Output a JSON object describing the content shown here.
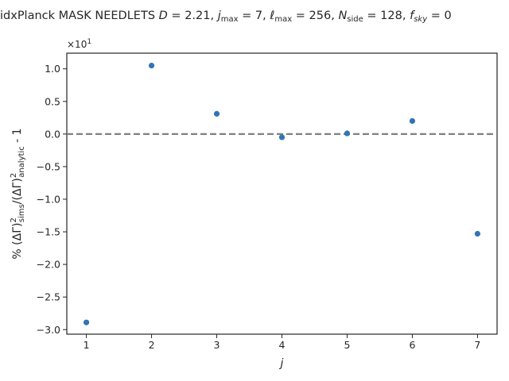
{
  "chart_data": {
    "type": "scatter",
    "title": "idxPlanck MASK NEEDLETS $D = 2.21,\\ j_{\\max} = 7,\\ \\ell_{\\max} = 256,\\ N_{\\rm side} = 128,\\ f_{sky} = 0",
    "title_parts": {
      "prefix": "idxPlanck MASK NEEDLETS ",
      "d_value": "2.21",
      "jmax_value": "7",
      "lmax_value": "256",
      "nside_value": "128",
      "fsky_value": "0"
    },
    "xlabel": "j",
    "ylabel": "% (ΔΓ)²sims/(ΔΓ)²analytic - 1",
    "ylabel_parts": {
      "lead": "% (ΔΓ)",
      "sup1": "2",
      "sub1": "sims",
      "mid": "/(ΔΓ)",
      "sup2": "2",
      "sub2": "analytic",
      "tail": " - 1"
    },
    "offset_label": {
      "base": "×10",
      "exp": "1"
    },
    "x": [
      1,
      2,
      3,
      4,
      5,
      6,
      7
    ],
    "y": [
      -2.89,
      1.05,
      0.31,
      -0.05,
      0.01,
      0.2,
      -1.53
    ],
    "xlim": [
      0.7,
      7.3
    ],
    "ylim": [
      -3.07,
      1.24
    ],
    "xticks": [
      "1",
      "2",
      "3",
      "4",
      "5",
      "6",
      "7"
    ],
    "yticks": [
      {
        "value": 1.0,
        "label": "1.0"
      },
      {
        "value": 0.5,
        "label": "0.5"
      },
      {
        "value": 0.0,
        "label": "0.0"
      },
      {
        "value": -0.5,
        "label": "−0.5"
      },
      {
        "value": -1.0,
        "label": "−1.0"
      },
      {
        "value": -1.5,
        "label": "−1.5"
      },
      {
        "value": -2.0,
        "label": "−2.0"
      },
      {
        "value": -2.5,
        "label": "−2.5"
      },
      {
        "value": -3.0,
        "label": "−3.0"
      }
    ],
    "reference_line": {
      "y": 0,
      "style": "dashed",
      "color": "#808080"
    },
    "marker_color": "#3274b5",
    "grid": false,
    "legend": "none"
  }
}
